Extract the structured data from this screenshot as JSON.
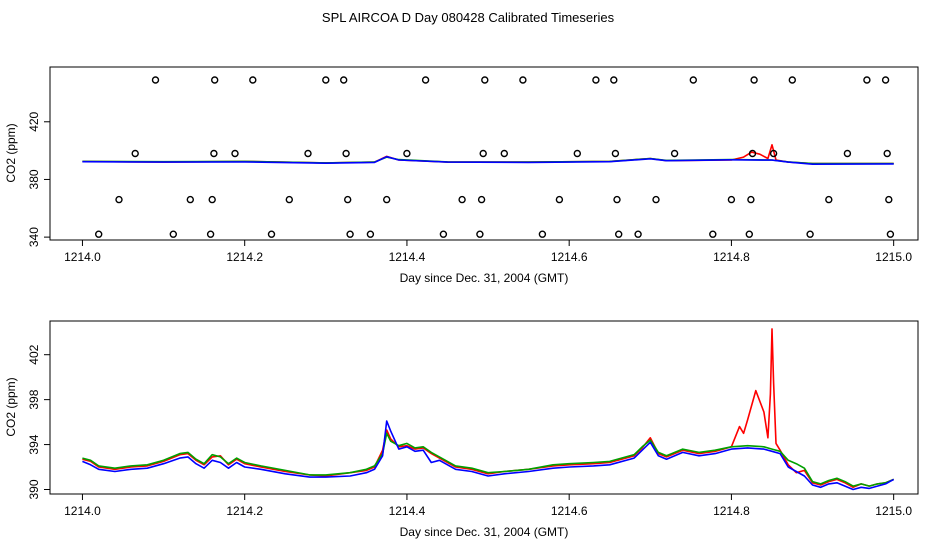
{
  "figure_title": "SPL AIRCOA D  Day 080428  Calibrated Timeseries",
  "chart_data": [
    {
      "type": "line",
      "title": "",
      "xlabel": "Day since Dec. 31, 2004 (GMT)",
      "ylabel": "CO2 (ppm)",
      "xlim": [
        1213.96,
        1215.03
      ],
      "ylim": [
        338,
        458
      ],
      "xticks": [
        1214.0,
        1214.2,
        1214.4,
        1214.6,
        1214.8,
        1215.0
      ],
      "xtick_labels": [
        "1214.0",
        "1214.2",
        "1214.4",
        "1214.6",
        "1214.8",
        "1215.0"
      ],
      "yticks": [
        340,
        380,
        420
      ],
      "ytick_labels": [
        "340",
        "380",
        "420"
      ],
      "series": [
        {
          "name": "red",
          "color": "#ff0000",
          "x": [
            1214.0,
            1214.1,
            1214.2,
            1214.3,
            1214.36,
            1214.375,
            1214.39,
            1214.45,
            1214.55,
            1214.65,
            1214.7,
            1214.72,
            1214.8,
            1214.815,
            1214.825,
            1214.835,
            1214.845,
            1214.85,
            1214.855,
            1214.87,
            1214.9,
            1215.0
          ],
          "y": [
            392.5,
            392.0,
            392.5,
            391.5,
            392.0,
            396.0,
            393.5,
            392.0,
            392.0,
            392.5,
            394.5,
            393.0,
            393.5,
            395.5,
            399.0,
            397.5,
            394.5,
            404.0,
            393.5,
            392.0,
            391.0,
            391.0
          ]
        },
        {
          "name": "green",
          "color": "#00a000",
          "x": [
            1214.0,
            1214.1,
            1214.2,
            1214.3,
            1214.36,
            1214.375,
            1214.39,
            1214.45,
            1214.55,
            1214.65,
            1214.7,
            1214.72,
            1214.8,
            1214.85,
            1214.87,
            1214.9,
            1215.0
          ],
          "y": [
            392.5,
            392.3,
            392.5,
            391.5,
            392.0,
            395.5,
            393.8,
            392.2,
            392.0,
            392.5,
            394.5,
            393.2,
            393.8,
            393.5,
            392.2,
            391.0,
            391.0
          ]
        },
        {
          "name": "blue",
          "color": "#0000ff",
          "x": [
            1214.0,
            1214.1,
            1214.2,
            1214.3,
            1214.36,
            1214.375,
            1214.39,
            1214.45,
            1214.55,
            1214.65,
            1214.7,
            1214.72,
            1214.8,
            1214.85,
            1214.87,
            1214.9,
            1215.0
          ],
          "y": [
            392.3,
            392.0,
            392.2,
            391.3,
            391.8,
            395.8,
            393.5,
            392.0,
            391.8,
            392.3,
            394.3,
            393.0,
            393.6,
            393.4,
            392.0,
            390.6,
            390.8
          ]
        }
      ],
      "markers": [
        {
          "x": 1214.02,
          "y": 342
        },
        {
          "x": 1214.045,
          "y": 366
        },
        {
          "x": 1214.065,
          "y": 398
        },
        {
          "x": 1214.09,
          "y": 449
        },
        {
          "x": 1214.112,
          "y": 342
        },
        {
          "x": 1214.133,
          "y": 366
        },
        {
          "x": 1214.158,
          "y": 342
        },
        {
          "x": 1214.16,
          "y": 366
        },
        {
          "x": 1214.162,
          "y": 398
        },
        {
          "x": 1214.163,
          "y": 449
        },
        {
          "x": 1214.188,
          "y": 398
        },
        {
          "x": 1214.21,
          "y": 449
        },
        {
          "x": 1214.233,
          "y": 342
        },
        {
          "x": 1214.255,
          "y": 366
        },
        {
          "x": 1214.278,
          "y": 398
        },
        {
          "x": 1214.3,
          "y": 449
        },
        {
          "x": 1214.322,
          "y": 449
        },
        {
          "x": 1214.325,
          "y": 398
        },
        {
          "x": 1214.327,
          "y": 366
        },
        {
          "x": 1214.33,
          "y": 342
        },
        {
          "x": 1214.355,
          "y": 342
        },
        {
          "x": 1214.375,
          "y": 366
        },
        {
          "x": 1214.4,
          "y": 398
        },
        {
          "x": 1214.423,
          "y": 449
        },
        {
          "x": 1214.445,
          "y": 342
        },
        {
          "x": 1214.468,
          "y": 366
        },
        {
          "x": 1214.49,
          "y": 342
        },
        {
          "x": 1214.492,
          "y": 366
        },
        {
          "x": 1214.494,
          "y": 398
        },
        {
          "x": 1214.496,
          "y": 449
        },
        {
          "x": 1214.52,
          "y": 398
        },
        {
          "x": 1214.543,
          "y": 449
        },
        {
          "x": 1214.567,
          "y": 342
        },
        {
          "x": 1214.588,
          "y": 366
        },
        {
          "x": 1214.61,
          "y": 398
        },
        {
          "x": 1214.633,
          "y": 449
        },
        {
          "x": 1214.655,
          "y": 449
        },
        {
          "x": 1214.657,
          "y": 398
        },
        {
          "x": 1214.659,
          "y": 366
        },
        {
          "x": 1214.661,
          "y": 342
        },
        {
          "x": 1214.685,
          "y": 342
        },
        {
          "x": 1214.707,
          "y": 366
        },
        {
          "x": 1214.73,
          "y": 398
        },
        {
          "x": 1214.753,
          "y": 449
        },
        {
          "x": 1214.777,
          "y": 342
        },
        {
          "x": 1214.8,
          "y": 366
        },
        {
          "x": 1214.822,
          "y": 342
        },
        {
          "x": 1214.824,
          "y": 366
        },
        {
          "x": 1214.826,
          "y": 398
        },
        {
          "x": 1214.828,
          "y": 449
        },
        {
          "x": 1214.852,
          "y": 398
        },
        {
          "x": 1214.875,
          "y": 449
        },
        {
          "x": 1214.897,
          "y": 342
        },
        {
          "x": 1214.92,
          "y": 366
        },
        {
          "x": 1214.943,
          "y": 398
        },
        {
          "x": 1214.967,
          "y": 449
        },
        {
          "x": 1214.99,
          "y": 449
        },
        {
          "x": 1214.992,
          "y": 398
        },
        {
          "x": 1214.994,
          "y": 366
        },
        {
          "x": 1214.996,
          "y": 342
        }
      ]
    },
    {
      "type": "line",
      "title": "",
      "xlabel": "Day since Dec. 31, 2004 (GMT)",
      "ylabel": "CO2 (ppm)",
      "xlim": [
        1213.96,
        1215.03
      ],
      "ylim": [
        389.6,
        405.0
      ],
      "xticks": [
        1214.0,
        1214.2,
        1214.4,
        1214.6,
        1214.8,
        1215.0
      ],
      "xtick_labels": [
        "1214.0",
        "1214.2",
        "1214.4",
        "1214.6",
        "1214.8",
        "1215.0"
      ],
      "yticks": [
        390,
        394,
        398,
        402
      ],
      "ytick_labels": [
        "390",
        "394",
        "398",
        "402"
      ],
      "series": [
        {
          "name": "red",
          "color": "#ff0000",
          "x": [
            1214.0,
            1214.01,
            1214.02,
            1214.04,
            1214.06,
            1214.08,
            1214.1,
            1214.12,
            1214.13,
            1214.14,
            1214.15,
            1214.16,
            1214.17,
            1214.18,
            1214.19,
            1214.2,
            1214.22,
            1214.25,
            1214.28,
            1214.3,
            1214.33,
            1214.35,
            1214.36,
            1214.37,
            1214.375,
            1214.38,
            1214.39,
            1214.4,
            1214.41,
            1214.42,
            1214.43,
            1214.44,
            1214.46,
            1214.48,
            1214.5,
            1214.52,
            1214.55,
            1214.58,
            1214.6,
            1214.63,
            1214.65,
            1214.68,
            1214.69,
            1214.7,
            1214.71,
            1214.72,
            1214.74,
            1214.76,
            1214.78,
            1214.8,
            1214.81,
            1214.815,
            1214.82,
            1214.83,
            1214.84,
            1214.845,
            1214.848,
            1214.85,
            1214.852,
            1214.855,
            1214.86,
            1214.87,
            1214.88,
            1214.89,
            1214.9,
            1214.91,
            1214.92,
            1214.93,
            1214.94,
            1214.95,
            1214.96,
            1214.97,
            1214.98,
            1214.99,
            1215.0
          ],
          "y": [
            392.7,
            392.5,
            392.0,
            391.8,
            392.0,
            392.1,
            392.5,
            393.1,
            393.2,
            392.6,
            392.2,
            392.9,
            393.0,
            392.2,
            392.7,
            392.3,
            392.0,
            391.6,
            391.3,
            391.2,
            391.5,
            391.7,
            392.0,
            393.5,
            395.3,
            394.5,
            393.8,
            393.9,
            393.6,
            393.7,
            393.2,
            392.8,
            392.0,
            391.8,
            391.4,
            391.6,
            391.8,
            392.1,
            392.2,
            392.3,
            392.4,
            393.0,
            393.7,
            394.6,
            393.2,
            392.9,
            393.5,
            393.2,
            393.4,
            393.8,
            395.6,
            395.0,
            396.2,
            398.8,
            396.9,
            394.6,
            398.5,
            404.3,
            399.5,
            394.1,
            393.5,
            392.2,
            391.5,
            391.7,
            390.6,
            390.4,
            390.7,
            390.9,
            390.6,
            390.2,
            390.5,
            390.3,
            390.5,
            390.6,
            390.9
          ]
        },
        {
          "name": "green",
          "color": "#00a000",
          "x": [
            1214.0,
            1214.01,
            1214.02,
            1214.04,
            1214.06,
            1214.08,
            1214.1,
            1214.12,
            1214.13,
            1214.14,
            1214.15,
            1214.16,
            1214.17,
            1214.18,
            1214.19,
            1214.2,
            1214.22,
            1214.25,
            1214.28,
            1214.3,
            1214.33,
            1214.35,
            1214.36,
            1214.37,
            1214.375,
            1214.38,
            1214.39,
            1214.4,
            1214.41,
            1214.42,
            1214.43,
            1214.44,
            1214.46,
            1214.48,
            1214.5,
            1214.52,
            1214.55,
            1214.58,
            1214.6,
            1214.63,
            1214.65,
            1214.68,
            1214.69,
            1214.7,
            1214.71,
            1214.72,
            1214.74,
            1214.76,
            1214.78,
            1214.8,
            1214.82,
            1214.84,
            1214.85,
            1214.86,
            1214.87,
            1214.88,
            1214.89,
            1214.9,
            1214.91,
            1214.92,
            1214.93,
            1214.94,
            1214.95,
            1214.96,
            1214.97,
            1214.98,
            1214.99,
            1215.0
          ],
          "y": [
            392.8,
            392.6,
            392.1,
            391.9,
            392.1,
            392.2,
            392.6,
            393.2,
            393.3,
            392.7,
            392.3,
            393.1,
            392.9,
            392.3,
            392.8,
            392.4,
            392.1,
            391.7,
            391.3,
            391.3,
            391.5,
            391.8,
            392.1,
            393.2,
            395.0,
            394.3,
            393.9,
            394.1,
            393.7,
            393.8,
            393.3,
            392.9,
            392.1,
            391.9,
            391.5,
            391.6,
            391.8,
            392.2,
            392.3,
            392.4,
            392.5,
            393.1,
            393.8,
            394.4,
            393.3,
            393.0,
            393.6,
            393.3,
            393.5,
            393.8,
            393.9,
            393.8,
            393.6,
            393.4,
            392.6,
            392.3,
            391.9,
            390.7,
            390.5,
            390.8,
            391.0,
            390.7,
            390.3,
            390.5,
            390.3,
            390.5,
            390.6,
            390.9
          ]
        },
        {
          "name": "blue",
          "color": "#0000ff",
          "x": [
            1214.0,
            1214.01,
            1214.02,
            1214.04,
            1214.06,
            1214.08,
            1214.1,
            1214.12,
            1214.13,
            1214.14,
            1214.15,
            1214.16,
            1214.17,
            1214.18,
            1214.19,
            1214.2,
            1214.22,
            1214.25,
            1214.28,
            1214.3,
            1214.33,
            1214.35,
            1214.36,
            1214.37,
            1214.375,
            1214.38,
            1214.39,
            1214.4,
            1214.41,
            1214.42,
            1214.43,
            1214.44,
            1214.46,
            1214.48,
            1214.5,
            1214.52,
            1214.55,
            1214.58,
            1214.6,
            1214.63,
            1214.65,
            1214.68,
            1214.69,
            1214.7,
            1214.71,
            1214.72,
            1214.74,
            1214.76,
            1214.78,
            1214.8,
            1214.82,
            1214.84,
            1214.85,
            1214.86,
            1214.87,
            1214.88,
            1214.89,
            1214.9,
            1214.91,
            1214.92,
            1214.93,
            1214.94,
            1214.95,
            1214.96,
            1214.97,
            1214.98,
            1214.99,
            1215.0
          ],
          "y": [
            392.5,
            392.2,
            391.8,
            391.6,
            391.8,
            391.9,
            392.3,
            392.8,
            392.9,
            392.3,
            391.9,
            392.6,
            392.4,
            391.9,
            392.4,
            392.0,
            391.8,
            391.4,
            391.1,
            391.1,
            391.2,
            391.5,
            391.8,
            393.0,
            396.1,
            395.2,
            393.6,
            393.8,
            393.4,
            393.5,
            392.4,
            392.6,
            391.8,
            391.6,
            391.2,
            391.4,
            391.6,
            391.9,
            392.0,
            392.1,
            392.2,
            392.8,
            393.5,
            394.2,
            393.0,
            392.7,
            393.3,
            393.0,
            393.2,
            393.6,
            393.7,
            393.6,
            393.4,
            393.2,
            392.0,
            391.6,
            391.2,
            390.4,
            390.2,
            390.5,
            390.6,
            390.3,
            390.0,
            390.2,
            390.1,
            390.3,
            390.5,
            390.9
          ]
        }
      ]
    }
  ]
}
